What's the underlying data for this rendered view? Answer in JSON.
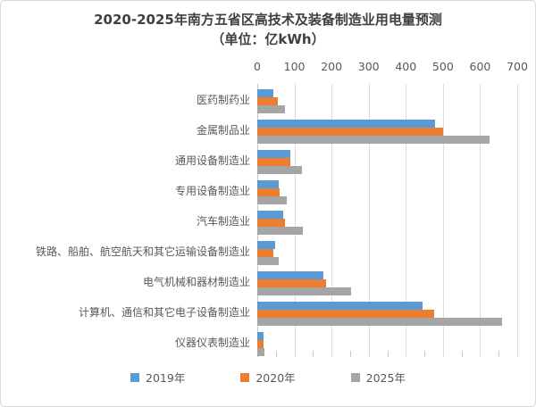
{
  "title": {
    "line1": "2020-2025年南方五省区高技术及装备制造业用电量预测",
    "line2": "（单位：亿kWh）"
  },
  "chart_data": {
    "type": "bar",
    "orientation": "horizontal",
    "title": "2020-2025年南方五省区高技术及装备制造业用电量预测",
    "subtitle": "（单位：亿kWh）",
    "unit": "亿kWh",
    "value_axis": {
      "position": "top",
      "min": 0,
      "max": 700,
      "ticks": [
        0,
        100,
        200,
        300,
        400,
        500,
        600,
        700
      ],
      "minor_tick_interval": 50
    },
    "categories": [
      "医药制药业",
      "金属制品业",
      "通用设备制造业",
      "专用设备制造业",
      "汽车制造业",
      "铁路、船舶、航空航天和其它运输设备制造业",
      "电气机械和器材制造业",
      "计算机、通信和其它电子设备制造业",
      "仪器仪表制造业"
    ],
    "series": [
      {
        "name": "2019年",
        "color": "#5B9BD5",
        "values": [
          43,
          478,
          90,
          57,
          70,
          47,
          178,
          444,
          18
        ]
      },
      {
        "name": "2020年",
        "color": "#ED7D31",
        "values": [
          55,
          500,
          89,
          60,
          74,
          43,
          186,
          476,
          17
        ]
      },
      {
        "name": "2025年",
        "color": "#A5A5A5",
        "values": [
          75,
          626,
          120,
          80,
          122,
          57,
          252,
          658,
          20
        ]
      }
    ],
    "legend": {
      "position": "bottom",
      "entries": [
        "2019年",
        "2020年",
        "2025年"
      ]
    },
    "grid": true,
    "colors": {
      "gridline": "#DCDCDC",
      "axis_text": "#595959",
      "category_text": "#595959",
      "title_text": "#404040",
      "frame_border": "#D9D9D9",
      "background": "#FFFFFF"
    }
  }
}
